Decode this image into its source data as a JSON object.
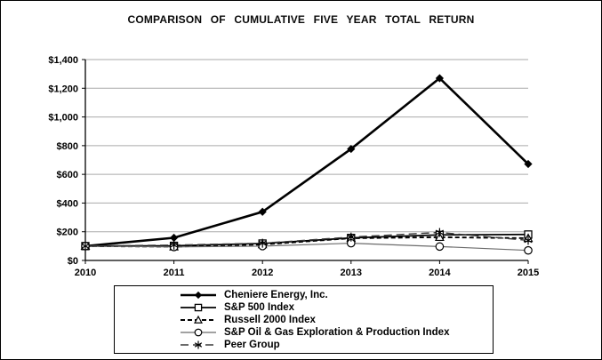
{
  "title": "COMPARISON OF CUMULATIVE FIVE YEAR TOTAL RETURN",
  "chart_data": {
    "type": "line",
    "x": [
      "2010",
      "2011",
      "2012",
      "2013",
      "2014",
      "2015"
    ],
    "series": [
      {
        "name": "Cheniere Energy, Inc.",
        "marker": "diamond-filled",
        "line": "solid-thick",
        "values": [
          100,
          158,
          339,
          777,
          1270,
          672
        ]
      },
      {
        "name": "S&P 500 Index",
        "marker": "square-open",
        "line": "solid",
        "values": [
          100,
          102,
          118,
          157,
          178,
          181
        ]
      },
      {
        "name": "Russell 2000 Index",
        "marker": "triangle-open",
        "line": "dashed",
        "values": [
          100,
          96,
          111,
          155,
          162,
          155
        ]
      },
      {
        "name": "S&P Oil & Gas Exploration & Production Index",
        "marker": "circle-open",
        "line": "solid-thin",
        "values": [
          100,
          94,
          100,
          120,
          97,
          70
        ]
      },
      {
        "name": "Peer Group",
        "marker": "asterisk",
        "line": "dash-dot",
        "values": [
          100,
          107,
          120,
          163,
          195,
          140
        ]
      }
    ],
    "ylim": [
      0,
      1400
    ],
    "ytick_step": 200,
    "ytick_labels": [
      "$0",
      "$200",
      "$400",
      "$600",
      "$800",
      "$1,000",
      "$1,200",
      "$1,400"
    ],
    "xlabel": "",
    "ylabel": "",
    "grid": "horizontal-gray",
    "legend_position": "bottom-boxed"
  },
  "colors": {
    "line_black": "#000000",
    "line_gray": "#6b6b6b",
    "line_darkgray": "#3a3a3a",
    "gridline": "#aaaaaa",
    "background": "#ffffff"
  }
}
